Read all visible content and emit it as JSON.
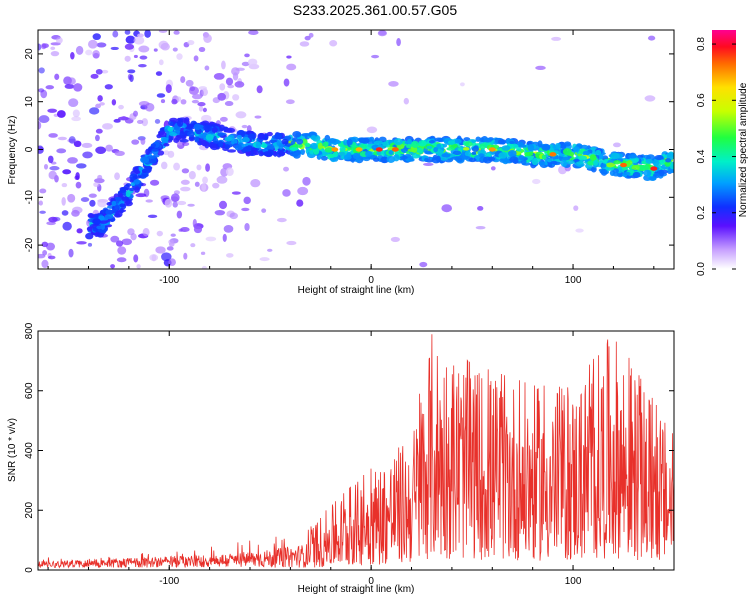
{
  "title": "S233.2025.361.00.57.G05",
  "chart_data": [
    {
      "type": "heatmap",
      "xlabel": "Height of straight line (km)",
      "ylabel": "Frequency (Hz)",
      "xlim": [
        -165,
        150
      ],
      "ylim": [
        -25,
        25
      ],
      "xticks": [
        -100,
        0,
        100
      ],
      "yticks": [
        -20,
        -10,
        0,
        10,
        20
      ],
      "colorbar": {
        "label": "Normalized spectral amplitude",
        "range": [
          0,
          0.85
        ],
        "ticks": [
          0.0,
          0.2,
          0.4,
          0.6,
          0.8
        ],
        "tick_labels": [
          "0.0",
          "0.2",
          "0.4",
          "0.6",
          "0.8"
        ]
      },
      "ridge": {
        "x": [
          -135,
          -120,
          -110,
          -100,
          -90,
          -80,
          -70,
          -55,
          -40,
          -30,
          -20,
          0,
          20,
          40,
          60,
          80,
          100,
          120,
          140,
          150
        ],
        "freq": [
          -16,
          -9,
          -2,
          4,
          4,
          3,
          2,
          1,
          1,
          1,
          0,
          0,
          0,
          0,
          0,
          -1,
          -1,
          -3,
          -4,
          -2
        ]
      }
    },
    {
      "type": "line",
      "xlabel": "Height of straight line (km)",
      "ylabel": "SNR (10 * v/v)",
      "xlim": [
        -165,
        150
      ],
      "ylim": [
        0,
        800
      ],
      "xticks": [
        -100,
        0,
        100
      ],
      "yticks": [
        0,
        200,
        400,
        600,
        800
      ],
      "series": [
        {
          "name": "SNR",
          "color": "#e8302a",
          "envelope_x": [
            -165,
            -120,
            -80,
            -50,
            -30,
            -10,
            10,
            20,
            30,
            50,
            80,
            100,
            120,
            150
          ],
          "envelope_max": [
            40,
            60,
            80,
            110,
            150,
            280,
            400,
            450,
            800,
            690,
            620,
            610,
            800,
            450
          ]
        }
      ]
    }
  ],
  "colors": {
    "line": "#e8302a",
    "spectrum": [
      "#ffffff",
      "#a06cff",
      "#3c0aff",
      "#0028ff",
      "#00c8ff",
      "#00ff80",
      "#b4ff00",
      "#ffff00",
      "#ff8000",
      "#ff0000",
      "#ff0078"
    ]
  }
}
